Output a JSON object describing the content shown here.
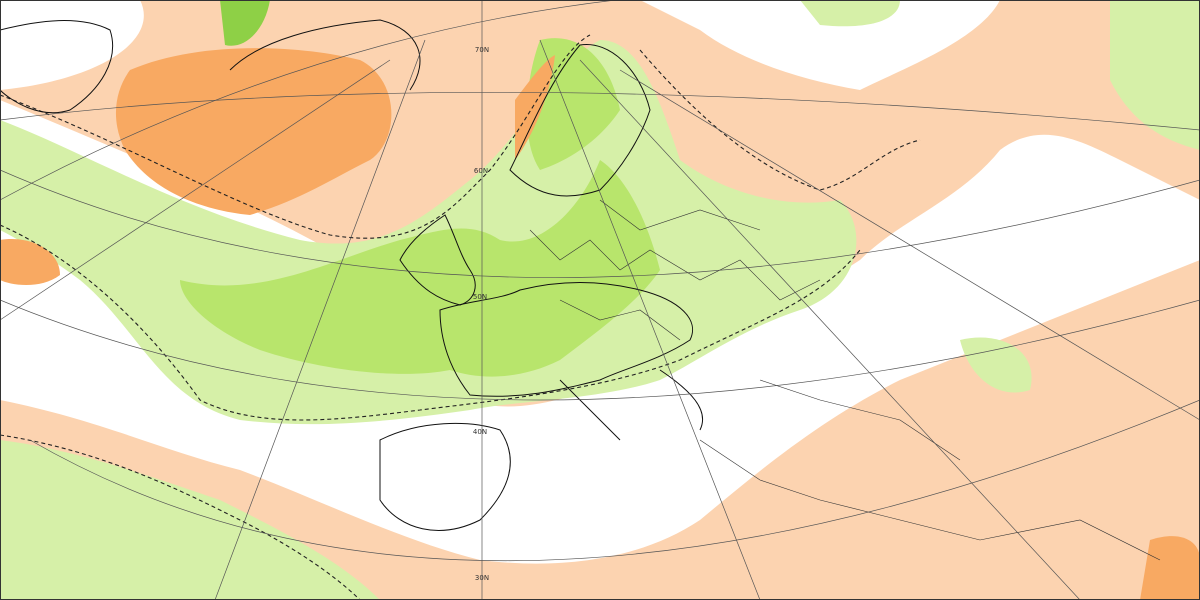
{
  "map": {
    "latitude_labels": [
      "70N",
      "60N",
      "50N",
      "40N",
      "30N"
    ]
  }
}
